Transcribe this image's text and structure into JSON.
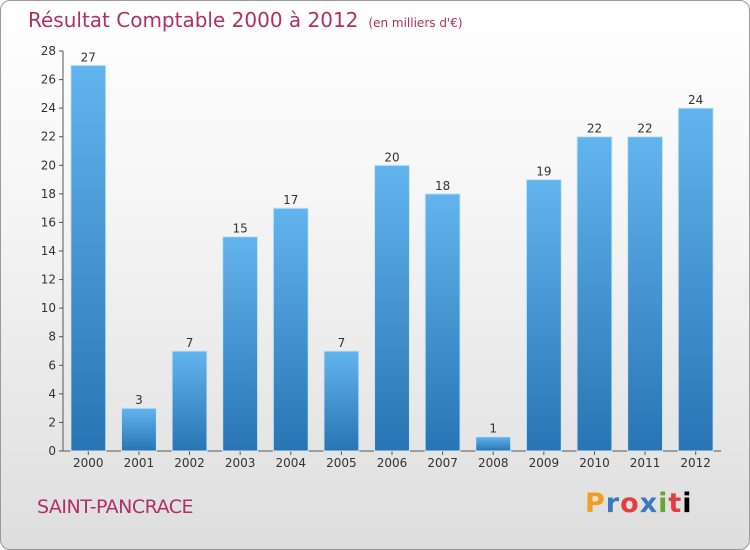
{
  "header": {
    "title": "Résultat Comptable 2000 à 2012",
    "subtitle": "(en milliers d'€)"
  },
  "footer": {
    "town": "SAINT-PANCRACE",
    "logo": [
      "P",
      "r",
      "o",
      "x",
      "i",
      "t",
      "i"
    ]
  },
  "colors": {
    "title": "#b03060",
    "bar_light": "#5fb0ea",
    "bar_dark": "#2a78b8"
  },
  "chart_data": {
    "type": "bar",
    "title": "Résultat Comptable 2000 à 2012",
    "subtitle": "(en milliers d'€)",
    "categories": [
      "2000",
      "2001",
      "2002",
      "2003",
      "2004",
      "2005",
      "2006",
      "2007",
      "2008",
      "2009",
      "2010",
      "2011",
      "2012"
    ],
    "values": [
      27,
      3,
      7,
      15,
      17,
      7,
      20,
      18,
      1,
      19,
      22,
      22,
      24
    ],
    "ylim": [
      0,
      28
    ],
    "yticks": [
      0,
      2,
      4,
      6,
      8,
      10,
      12,
      14,
      16,
      18,
      20,
      22,
      24,
      26,
      28
    ],
    "grid": false,
    "legend": "none"
  }
}
